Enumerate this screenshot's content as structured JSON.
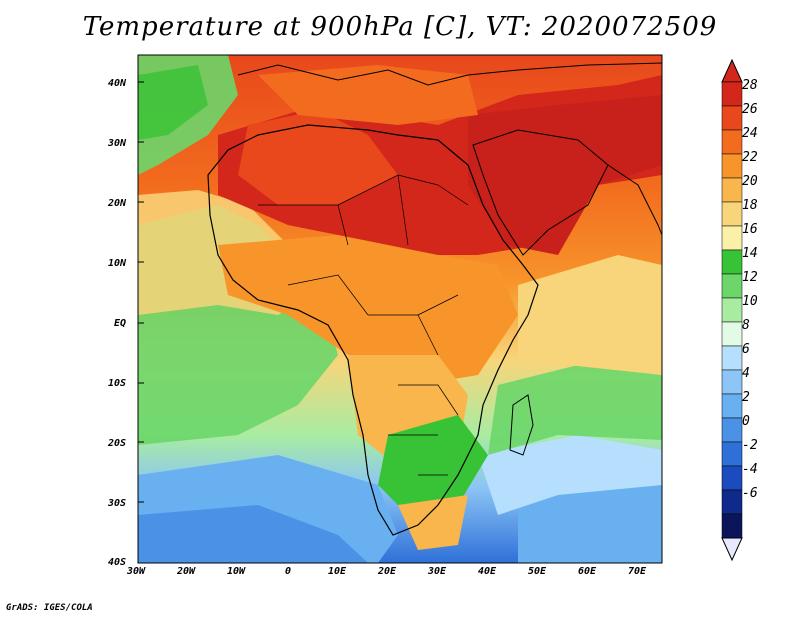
{
  "title": "Temperature at 900hPa [C], VT: 2020072509",
  "credit": "GrADS: IGES/COLA",
  "lat_labels": [
    "40N",
    "30N",
    "20N",
    "10N",
    "EQ",
    "10S",
    "20S",
    "30S",
    "40S"
  ],
  "lon_labels": [
    "30W",
    "20W",
    "10W",
    "0",
    "10E",
    "20E",
    "30E",
    "40E",
    "50E",
    "60E",
    "70E"
  ],
  "colorbar": {
    "labels": [
      "28",
      "26",
      "24",
      "22",
      "20",
      "18",
      "16",
      "14",
      "12",
      "10",
      "8",
      "6",
      "4",
      "2",
      "0",
      "-2",
      "-4",
      "-6"
    ],
    "colors": [
      "#d2271a",
      "#e8481c",
      "#f26b1e",
      "#f7952b",
      "#f8b64c",
      "#f8d57a",
      "#fbf0a8",
      "#38c236",
      "#6cd66a",
      "#a8eca2",
      "#e1fbe6",
      "#b5dffc",
      "#8cc5f6",
      "#69b0f0",
      "#4b91e6",
      "#2f70d8",
      "#1b4bbd",
      "#0f2a8a",
      "#0b155c"
    ],
    "top_color": "#d2271a",
    "bottom_color": "#e8e8ff"
  },
  "legend_colors": {
    "land_border": "#000000"
  }
}
